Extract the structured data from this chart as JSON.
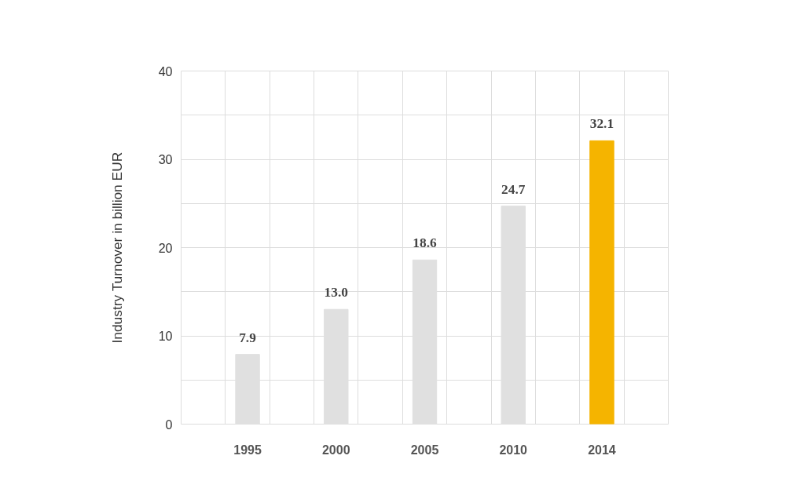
{
  "chart_data": {
    "type": "bar",
    "ylabel": "Industry Turnover in billion EUR",
    "categories": [
      "1995",
      "2000",
      "2005",
      "2010",
      "2014"
    ],
    "values": [
      7.9,
      13.0,
      18.6,
      24.7,
      32.1
    ],
    "colors": [
      "#e0e0e0",
      "#e0e0e0",
      "#e0e0e0",
      "#e0e0e0",
      "#f5b400"
    ],
    "value_labels": [
      "7.9",
      "13.0",
      "18.6",
      "24.7",
      "32.1"
    ],
    "ylim": [
      0,
      40
    ],
    "yticks": [
      0,
      {
        "value": 5,
        "label": null
      },
      10,
      {
        "value": 15,
        "label": null
      },
      20,
      {
        "value": 25,
        "label": null
      },
      30,
      {
        "value": 35,
        "label": null
      },
      40
    ],
    "grid": true
  }
}
